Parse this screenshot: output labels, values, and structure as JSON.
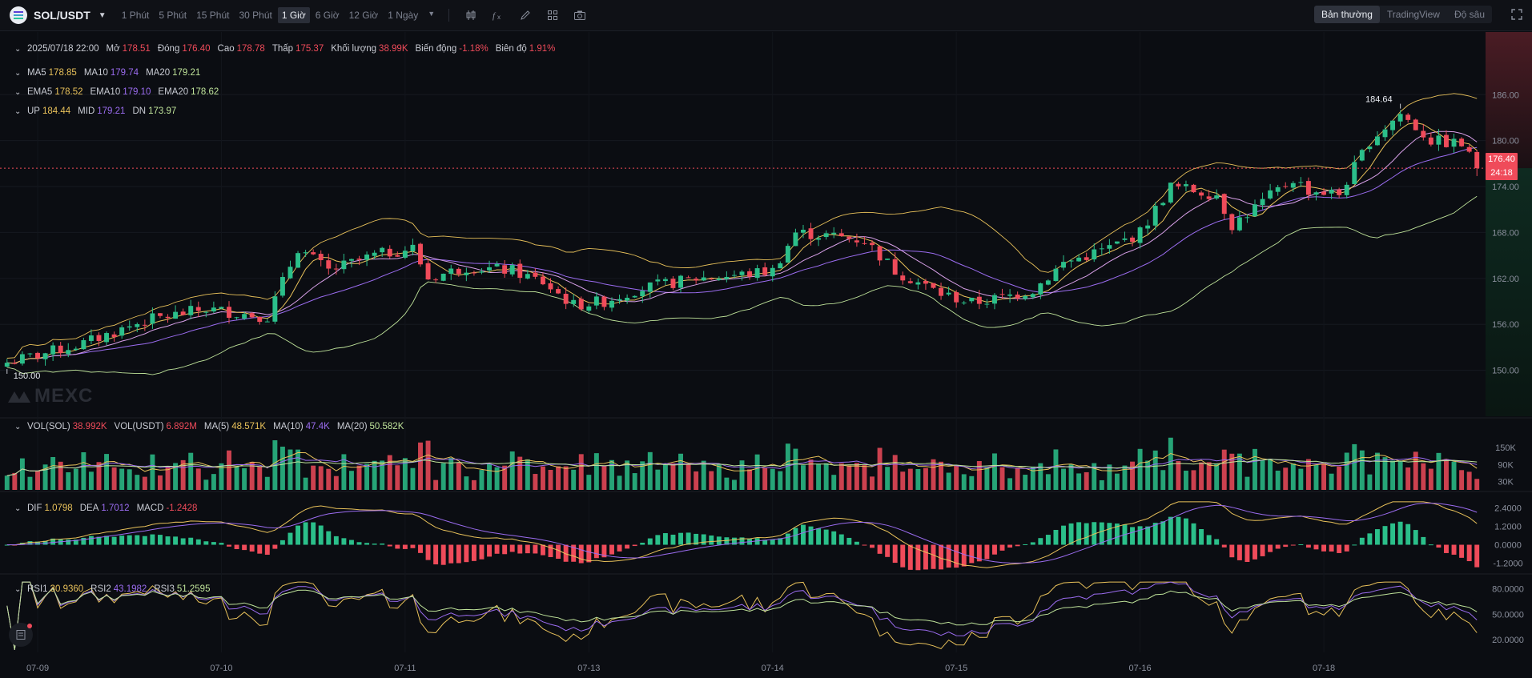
{
  "toolbar": {
    "symbol": "SOL/USDT",
    "intervals": [
      {
        "label": "1 Phút",
        "active": false
      },
      {
        "label": "5 Phút",
        "active": false
      },
      {
        "label": "15 Phút",
        "active": false
      },
      {
        "label": "30 Phút",
        "active": false
      },
      {
        "label": "1 Giờ",
        "active": true
      },
      {
        "label": "6 Giờ",
        "active": false
      },
      {
        "label": "12 Giờ",
        "active": false
      },
      {
        "label": "1 Ngày",
        "active": false
      }
    ],
    "tools": [
      "candle-type-icon",
      "indicator-fx-icon",
      "draw-pencil-icon",
      "layout-grid-icon",
      "camera-icon"
    ],
    "views": [
      {
        "label": "Bản thường",
        "active": true
      },
      {
        "label": "TradingView",
        "active": false
      },
      {
        "label": "Độ sâu",
        "active": false
      }
    ]
  },
  "ohlc": {
    "datetime": "2025/07/18 22:00",
    "open_label": "Mở",
    "open": "178.51",
    "close_label": "Đóng",
    "close": "176.40",
    "high_label": "Cao",
    "high": "178.78",
    "low_label": "Thấp",
    "low": "175.37",
    "volume_label": "Khối lượng",
    "volume": "38.99K",
    "change_label": "Biến động",
    "change": "-1.18%",
    "amplitude_label": "Biên độ",
    "amplitude": "1.91%"
  },
  "ma": {
    "ma5_label": "MA5",
    "ma5": "178.85",
    "ma10_label": "MA10",
    "ma10": "179.74",
    "ma20_label": "MA20",
    "ma20": "179.21"
  },
  "ema": {
    "ema5_label": "EMA5",
    "ema5": "178.52",
    "ema10_label": "EMA10",
    "ema10": "179.10",
    "ema20_label": "EMA20",
    "ema20": "178.62"
  },
  "boll": {
    "up_label": "UP",
    "up": "184.44",
    "mid_label": "MID",
    "mid": "179.21",
    "dn_label": "DN",
    "dn": "173.97"
  },
  "vol": {
    "sol_label": "VOL(SOL)",
    "sol": "38.992K",
    "usdt_label": "VOL(USDT)",
    "usdt": "6.892M",
    "ma5_label": "MA(5)",
    "ma5": "48.571K",
    "ma10_label": "MA(10)",
    "ma10": "47.4K",
    "ma20_label": "MA(20)",
    "ma20": "50.582K"
  },
  "macd": {
    "dif_label": "DIF",
    "dif": "1.0798",
    "dea_label": "DEA",
    "dea": "1.7012",
    "macd_label": "MACD",
    "macd": "-1.2428"
  },
  "rsi": {
    "rsi1_label": "RSI1",
    "rsi1": "30.9360",
    "rsi2_label": "RSI2",
    "rsi2": "43.1982",
    "rsi3_label": "RSI3",
    "rsi3": "51.2595"
  },
  "watermark": "MEXC",
  "last_price": {
    "price": "176.40",
    "countdown": "24:18"
  },
  "annotations": {
    "max_label": "184.64",
    "min_label": "150.00"
  },
  "colors": {
    "up": "#2bbf8a",
    "down": "#ef4b5a",
    "ma5": "#e8c15a",
    "ma10": "#9b6cf0",
    "ma20": "#bfe39a",
    "background": "#0b0d12"
  },
  "chart_data": {
    "type": "candlestick",
    "price_axis": {
      "ylim": [
        144,
        190
      ],
      "ticks": [
        "186.00",
        "180.00",
        "174.00",
        "168.00",
        "162.00",
        "156.00",
        "150.00"
      ]
    },
    "volume_axis": {
      "ylim": [
        0,
        190000
      ],
      "ticks": [
        "150K",
        "90K",
        "30K"
      ]
    },
    "macd_axis": {
      "ylim": [
        -1.8,
        2.9
      ],
      "ticks": [
        "2.4000",
        "1.2000",
        "0.0000",
        "-1.2000"
      ]
    },
    "rsi_axis": {
      "ylim": [
        5,
        90
      ],
      "ticks": [
        "80.0000",
        "50.0000",
        "20.0000"
      ]
    },
    "x_ticks": [
      "07-09",
      "07-10",
      "07-11",
      "07-13",
      "07-14",
      "07-15",
      "07-16",
      "07-18"
    ],
    "x_tick_index": [
      4,
      28,
      52,
      76,
      100,
      124,
      148,
      172
    ],
    "anchors": [
      [
        0,
        151
      ],
      [
        10,
        153.5
      ],
      [
        18,
        156.5
      ],
      [
        26,
        158
      ],
      [
        34,
        157
      ],
      [
        38,
        166
      ],
      [
        42,
        163
      ],
      [
        48,
        165
      ],
      [
        53,
        166
      ],
      [
        55,
        162
      ],
      [
        60,
        163.5
      ],
      [
        66,
        163
      ],
      [
        70,
        161.5
      ],
      [
        74,
        158.5
      ],
      [
        78,
        159
      ],
      [
        82,
        160.5
      ],
      [
        90,
        162
      ],
      [
        96,
        162.5
      ],
      [
        100,
        163
      ],
      [
        103,
        168
      ],
      [
        108,
        167.5
      ],
      [
        112,
        167
      ],
      [
        116,
        163
      ],
      [
        122,
        160
      ],
      [
        126,
        158.8
      ],
      [
        130,
        159.5
      ],
      [
        134,
        160.5
      ],
      [
        138,
        164
      ],
      [
        144,
        166
      ],
      [
        148,
        168
      ],
      [
        152,
        174
      ],
      [
        158,
        173
      ],
      [
        160,
        169
      ],
      [
        164,
        172
      ],
      [
        168,
        175
      ],
      [
        170,
        173.5
      ],
      [
        174,
        173
      ],
      [
        178,
        180
      ],
      [
        182,
        183.5
      ],
      [
        186,
        180
      ],
      [
        190,
        179.5
      ],
      [
        192,
        176.4
      ]
    ],
    "candle_count": 193
  }
}
